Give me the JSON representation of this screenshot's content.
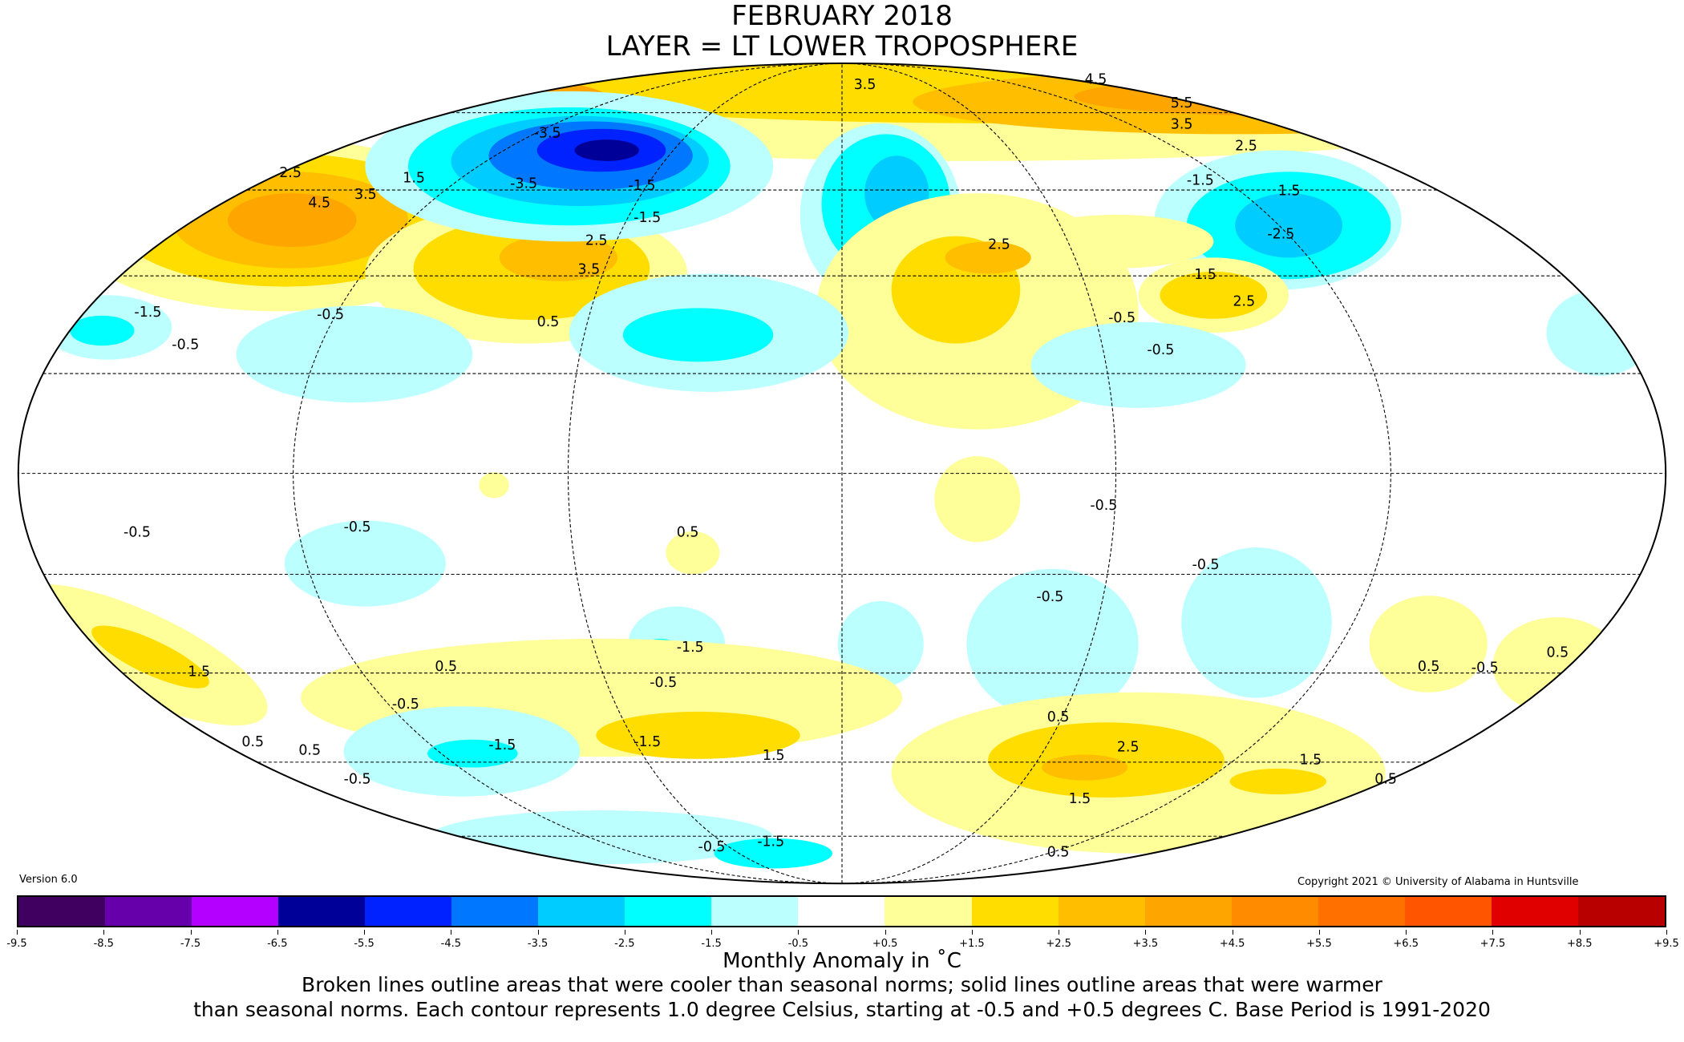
{
  "title": {
    "line1": "FEBRUARY 2018",
    "line2": "LAYER = LT LOWER TROPOSPHERE"
  },
  "version": "Version 6.0",
  "copyright": "Copyright 2021 © University of Alabama in Huntsville",
  "colorbar": {
    "colors": [
      "#3f0060",
      "#6600aa",
      "#b300ff",
      "#000099",
      "#0022ff",
      "#0077ff",
      "#00ccff",
      "#00ffff",
      "#bbffff",
      "#ffffff",
      "#ffff99",
      "#ffdd00",
      "#ffbf00",
      "#ffa500",
      "#ff8c00",
      "#ff7000",
      "#ff5500",
      "#e00000",
      "#b80000"
    ],
    "ticks": [
      "-9.5",
      "-8.5",
      "-7.5",
      "-6.5",
      "-5.5",
      "-4.5",
      "-3.5",
      "-2.5",
      "-1.5",
      "-0.5",
      "+0.5",
      "+1.5",
      "+2.5",
      "+3.5",
      "+4.5",
      "+5.5",
      "+6.5",
      "+7.5",
      "+8.5",
      "+9.5"
    ]
  },
  "units_label": "Monthly Anomaly in ˚C",
  "notes": {
    "line1": "Broken lines outline areas that were cooler than seasonal norms; solid lines outline areas that were warmer",
    "line2": "than seasonal norms. Each contour represents 1.0 degree Celsius, starting at -0.5 and +0.5 degrees C. Base Period is 1991-2020"
  },
  "contour_labels": [
    "4.5",
    "3.5",
    "2.5",
    "1.5",
    "-0.5",
    "-1.5",
    "-3.5",
    "-3.5",
    "2.5",
    "3.5",
    "0.5",
    "-1.5",
    "3.5",
    "4.5",
    "5.5",
    "3.5",
    "2.5",
    "1.5",
    "-2.5",
    "-1.5",
    "2.5",
    "2.5",
    "1.5",
    "-0.5",
    "-1.5",
    "-0.5",
    "-0.5",
    "0.5",
    "-0.5",
    "-0.5",
    "-1.5",
    "-0.5",
    "-0.5",
    "1.5",
    "0.5",
    "-1.5",
    "0.5",
    "0.5",
    "-0.5",
    "-1.5",
    "1.5",
    "-0.5",
    "0.5",
    "2.5",
    "1.5",
    "1.5",
    "0.5",
    "-0.5",
    "0.5",
    "-0.5",
    "0.5",
    "-0.5",
    "-1.5",
    "-0.5",
    "0.5"
  ]
}
